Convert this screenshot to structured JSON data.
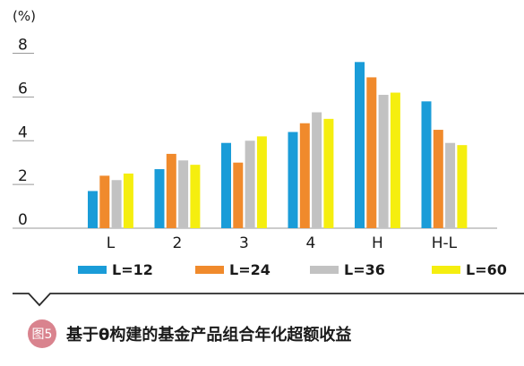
{
  "chart_data": {
    "type": "bar",
    "unit_label": "(%)",
    "categories": [
      "L",
      "2",
      "3",
      "4",
      "H",
      "H-L"
    ],
    "series": [
      {
        "name": "L=12",
        "color": "#1a9cd8",
        "values": [
          1.7,
          2.7,
          3.9,
          4.4,
          7.6,
          5.8
        ]
      },
      {
        "name": "L=24",
        "color": "#f08a2c",
        "values": [
          2.4,
          3.4,
          3.0,
          4.8,
          6.9,
          4.5
        ]
      },
      {
        "name": "L=36",
        "color": "#c2c2c2",
        "values": [
          2.2,
          3.1,
          4.0,
          5.3,
          6.1,
          3.9
        ]
      },
      {
        "name": "L=60",
        "color": "#f5ee0f",
        "values": [
          2.5,
          2.9,
          4.2,
          5.0,
          6.2,
          3.8
        ]
      }
    ],
    "yticks": [
      0,
      2,
      4,
      6,
      8
    ],
    "ylim": [
      0,
      8.8
    ],
    "legend_position": "bottom",
    "grid": false
  },
  "caption": {
    "badge": "图5",
    "title": "基于θ构建的基金产品组合年化超额收益",
    "badge_color": "#d9838e"
  }
}
